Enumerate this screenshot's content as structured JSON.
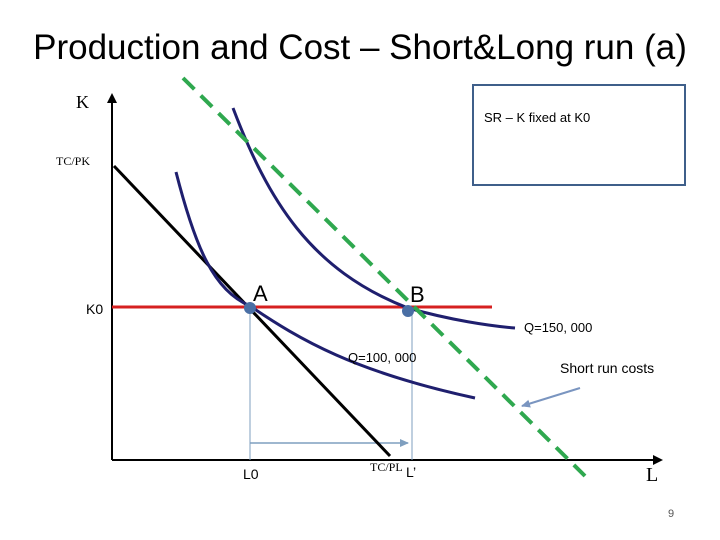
{
  "slide": {
    "title": "Production and Cost – Short&Long run (a)",
    "page_number": "9"
  },
  "axes": {
    "y_label": "K",
    "x_label": "L",
    "y_intercept_label": "TC/PK",
    "x_intercept_label": "TC/PL"
  },
  "annotations": {
    "sr_box": "SR – K fixed at K0",
    "k0_label": "K0",
    "l0_label": "L0",
    "lprime_label": "L’",
    "point_a": "A",
    "point_b": "B",
    "isoquant_low": "Q=100, 000",
    "isoquant_high": "Q=150, 000",
    "short_run_costs": "Short run costs"
  },
  "colors": {
    "isoquant": "#1f1f6e",
    "isocost": "#000000",
    "k_fixed_line": "#d62020",
    "new_isocost": "#2fa84f",
    "point": "#4a6fa5",
    "guides": "#7f9fbf",
    "callout_arrow": "#7a95c0",
    "box_border": "#3f5f8a"
  }
}
